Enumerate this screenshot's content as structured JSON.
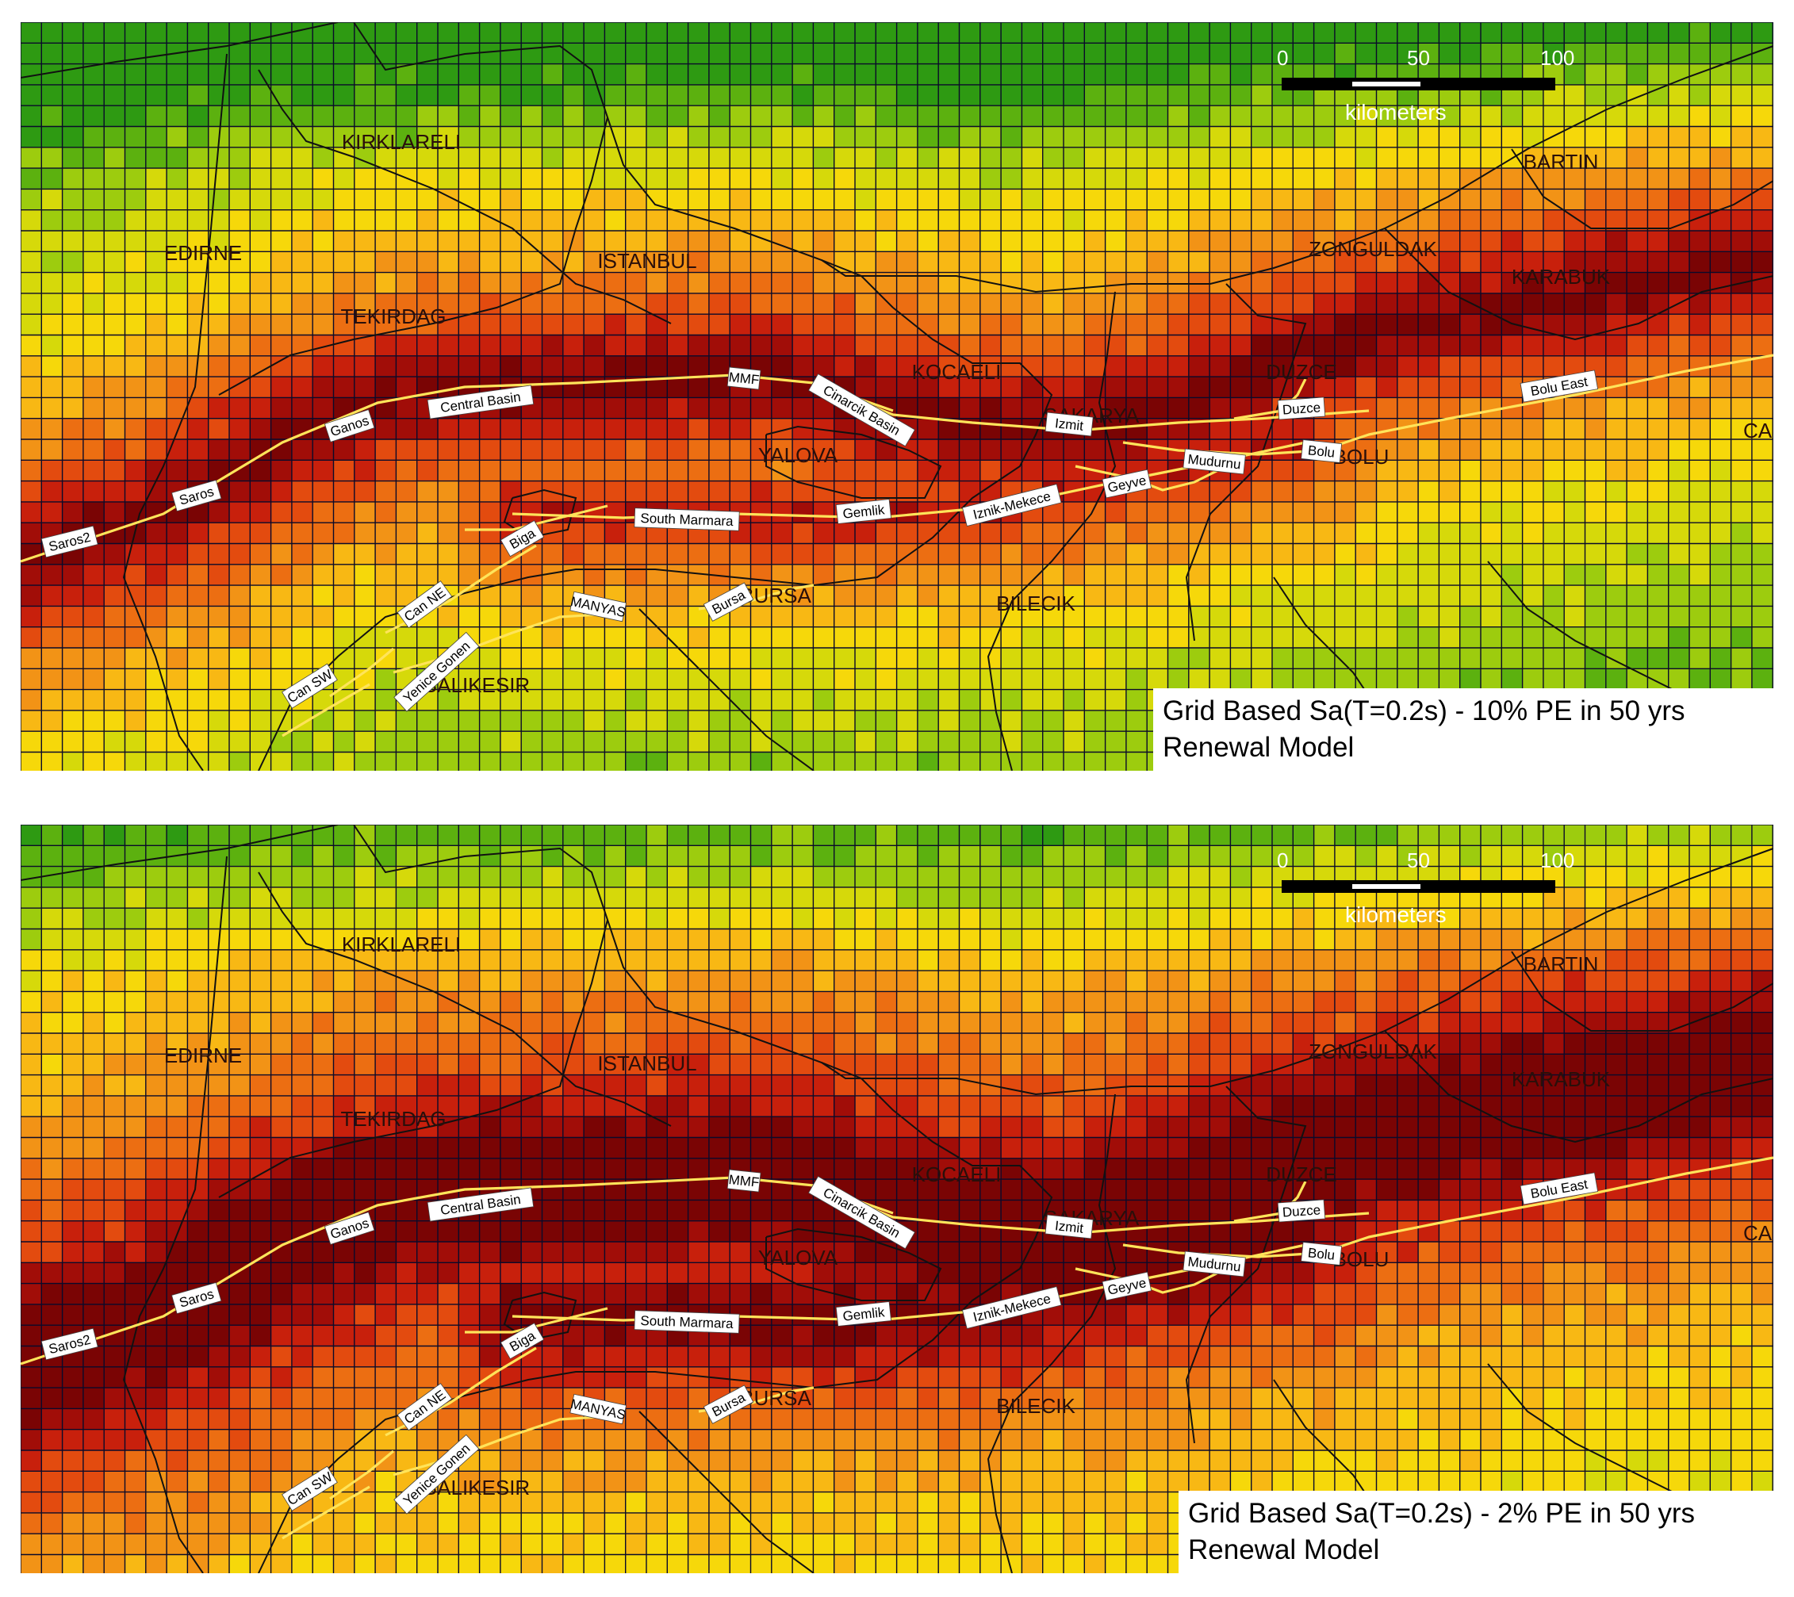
{
  "panels": [
    {
      "id": "top",
      "legend_line1": "Grid Based Sa(T=0.2s) - 10% PE in 50 yrs",
      "legend_line2": "Renewal Model",
      "intensity_shift": 0
    },
    {
      "id": "bottom",
      "legend_line1": "Grid Based Sa(T=0.2s) - 2% PE in 50 yrs",
      "legend_line2": "Renewal Model",
      "intensity_shift": 0.18
    }
  ],
  "scale": {
    "ticks": [
      "0",
      "50",
      "100"
    ],
    "unit": "kilometers"
  },
  "provinces": [
    "KIRKLARELI",
    "EDIRNE",
    "ISTANBUL",
    "TEKIRDAG",
    "KOCAELI",
    "SAKARYA",
    "YALOVA",
    "DUZCE",
    "ZONGULDAK",
    "BARTIN",
    "KARABUK",
    "BOLU",
    "BURSA",
    "BILECIK",
    "BALIKESIR",
    "CA"
  ],
  "faults": [
    "Saros2",
    "Saros",
    "Ganos",
    "Central Basin",
    "MMF",
    "Cinarcik Basin",
    "Izmit",
    "Duzce",
    "Bolu East",
    "Mudurnu",
    "Bolu",
    "Geyve",
    "Iznik-Mekece",
    "Gemlik",
    "South Marmara",
    "Biga",
    "Can NE",
    "Can SW",
    "Yenice Gonen",
    "MANYAS",
    "Bursa"
  ],
  "colors": {
    "ramp": [
      "#2e9a12",
      "#5cb10f",
      "#9dcc0e",
      "#d6d90a",
      "#f6d80a",
      "#f8b814",
      "#f29316",
      "#ec6e12",
      "#e34b0f",
      "#c8200c",
      "#a10d08",
      "#7a0404"
    ],
    "fault_line": "#ffe45a",
    "grid": "#0a0a2a"
  }
}
